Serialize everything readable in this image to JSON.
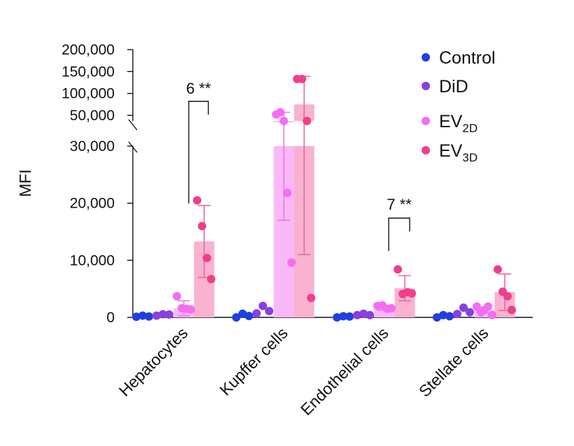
{
  "chart_data": {
    "type": "bar",
    "ylabel": "MFI",
    "y_axis_broken": true,
    "y_lower_range": [
      0,
      30000
    ],
    "y_lower_ticks": [
      "0",
      "10,000",
      "20,000",
      "30,000"
    ],
    "y_upper_range": [
      50000,
      200000
    ],
    "y_upper_ticks": [
      "50,000",
      "100,000",
      "150,000",
      "200,000"
    ],
    "categories": [
      "Hepatocytes",
      "Kupffer cells",
      "Endothelial cells",
      "Stellate cells"
    ],
    "series": [
      {
        "name": "Control",
        "label_main": "Control",
        "label_sub": "",
        "color": "#1f3fe0",
        "means": [
          150,
          250,
          100,
          200
        ],
        "sd": [
          0,
          0,
          0,
          0
        ],
        "points": [
          [
            100,
            300,
            150
          ],
          [
            0,
            650,
            250
          ],
          [
            0,
            200,
            150
          ],
          [
            0,
            400,
            200
          ]
        ]
      },
      {
        "name": "DiD",
        "label_main": "DiD",
        "label_sub": "",
        "color": "#8a3fe0",
        "means": [
          400,
          1100,
          450,
          900
        ],
        "sd": [
          0,
          0,
          0,
          0
        ],
        "points": [
          [
            300,
            550,
            500
          ],
          [
            700,
            2000,
            1100
          ],
          [
            400,
            650,
            400
          ],
          [
            600,
            1700,
            900
          ]
        ]
      },
      {
        "name": "EV2D",
        "label_main": "EV",
        "label_sub": "2D",
        "color": "#f56cf5",
        "means": [
          1600,
          37000,
          1550,
          1300
        ],
        "sd": [
          1300,
          20000,
          350,
          500
        ],
        "points": [
          [
            3700,
            1600,
            1500,
            1400
          ],
          [
            52000,
            57000,
            46000,
            21800,
            9600
          ],
          [
            2000,
            2100,
            1500,
            1600
          ],
          [
            1900,
            900,
            1300,
            1900,
            400
          ]
        ]
      },
      {
        "name": "EV3D",
        "label_main": "EV",
        "label_sub": "3D",
        "color": "#ee3f8c",
        "means": [
          13300,
          75000,
          5100,
          4400
        ],
        "sd": [
          6300,
          64000,
          2200,
          3200
        ],
        "points": [
          [
            20500,
            16000,
            10400,
            6700
          ],
          [
            133000,
            133000,
            38000,
            3400
          ],
          [
            8400,
            4100,
            4400,
            4200
          ],
          [
            8400,
            4500,
            3700,
            1300
          ]
        ]
      }
    ],
    "annotations": [
      {
        "label": "6 **",
        "category": "Hepatocytes"
      },
      {
        "label": "7 **",
        "category": "Endothelial cells"
      }
    ],
    "legend_position": "top-right"
  },
  "annotation_text": {
    "hepatocytes": "6 **",
    "endothelial": "7 **"
  }
}
